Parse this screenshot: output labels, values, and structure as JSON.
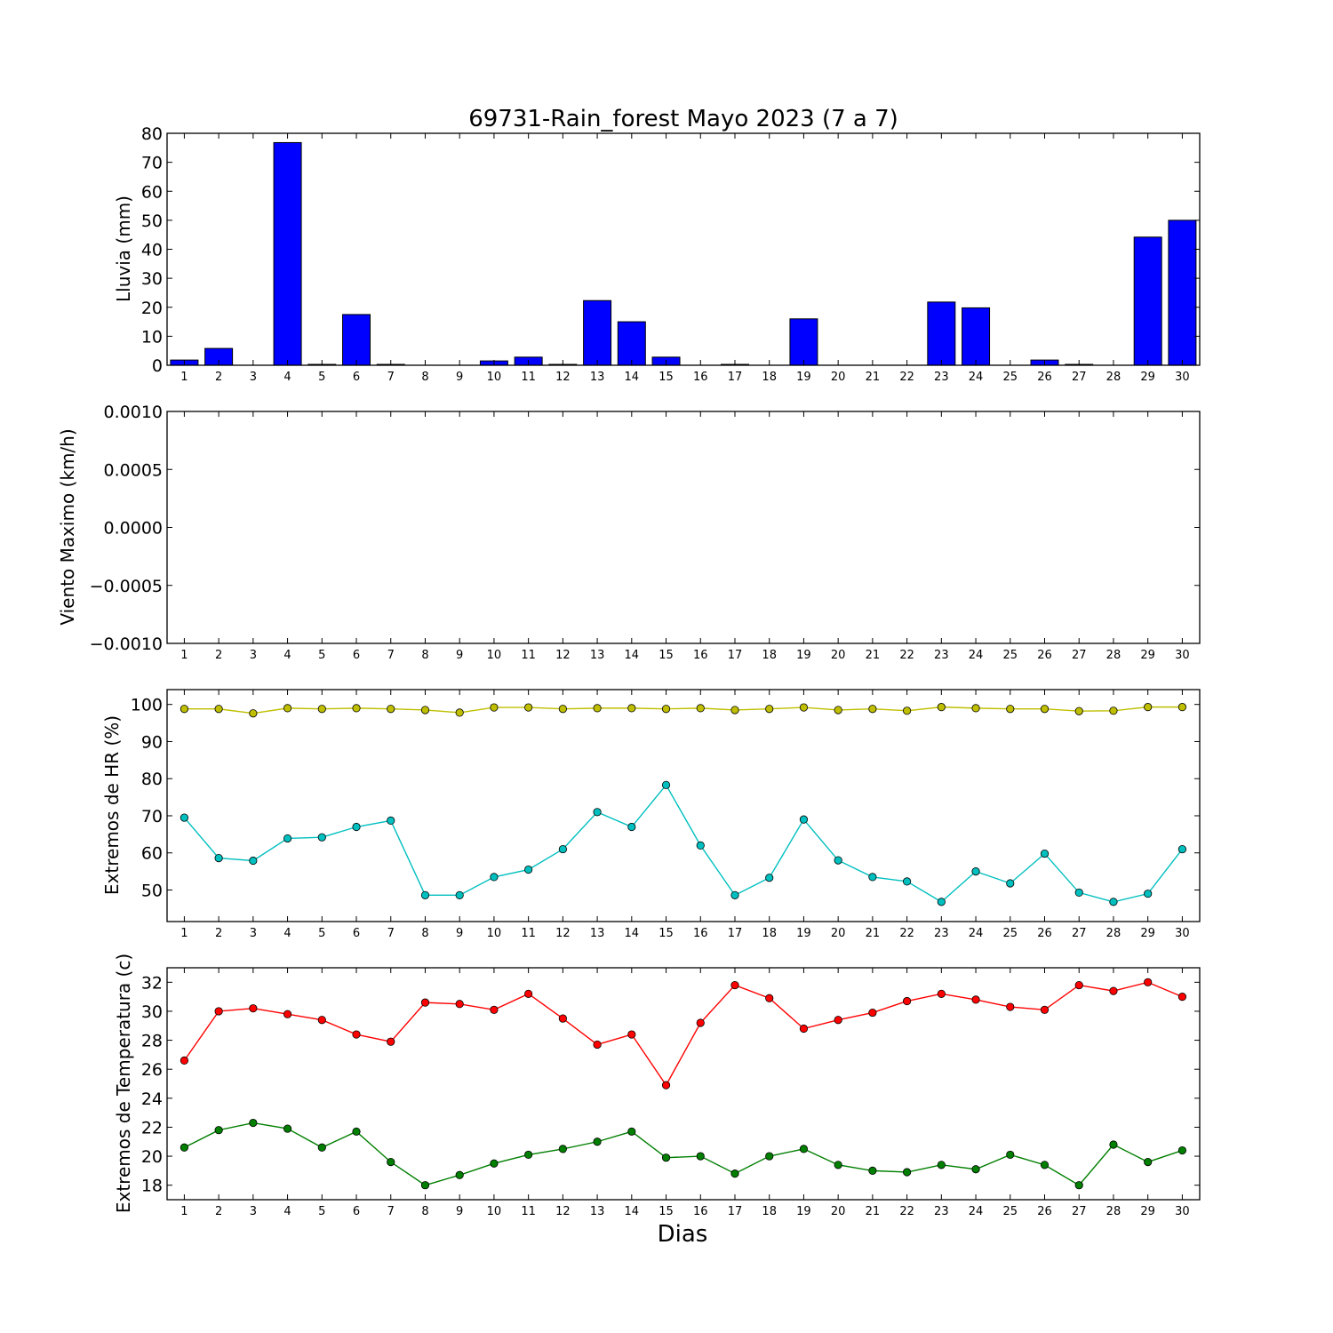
{
  "chart_data": [
    {
      "type": "bar",
      "title": "69731-Rain_forest Mayo 2023  (7 a 7)",
      "ylabel": "Lluvia (mm)",
      "xlabel": "",
      "categories": [
        "1",
        "2",
        "3",
        "4",
        "5",
        "6",
        "7",
        "8",
        "9",
        "10",
        "11",
        "12",
        "13",
        "14",
        "15",
        "16",
        "17",
        "18",
        "19",
        "20",
        "21",
        "22",
        "23",
        "24",
        "25",
        "26",
        "27",
        "28",
        "29",
        "30"
      ],
      "values": [
        1.8,
        5.8,
        0,
        76.8,
        0.3,
        17.5,
        0.3,
        0,
        0,
        1.5,
        2.8,
        0.3,
        22.3,
        15.0,
        2.8,
        0,
        0.3,
        0,
        16.0,
        0,
        0,
        0,
        21.8,
        19.8,
        0,
        1.8,
        0.3,
        0,
        44.2,
        50.0
      ],
      "ylim": [
        0,
        80
      ],
      "yticks": [
        "0",
        "10",
        "20",
        "30",
        "40",
        "50",
        "60",
        "70",
        "80"
      ],
      "color": "#0000ff"
    },
    {
      "type": "line",
      "title": "",
      "ylabel": "Viento Maximo (km/h)",
      "xlabel": "",
      "categories": [
        "1",
        "2",
        "3",
        "4",
        "5",
        "6",
        "7",
        "8",
        "9",
        "10",
        "11",
        "12",
        "13",
        "14",
        "15",
        "16",
        "17",
        "18",
        "19",
        "20",
        "21",
        "22",
        "23",
        "24",
        "25",
        "26",
        "27",
        "28",
        "29",
        "30"
      ],
      "series": [],
      "ylim": [
        -0.001,
        0.001
      ],
      "yticks": [
        "−0.0010",
        "−0.0005",
        "0.0000",
        "0.0005",
        "0.0010"
      ]
    },
    {
      "type": "line",
      "title": "",
      "ylabel": "Extremos de HR (%)",
      "xlabel": "",
      "categories": [
        "1",
        "2",
        "3",
        "4",
        "5",
        "6",
        "7",
        "8",
        "9",
        "10",
        "11",
        "12",
        "13",
        "14",
        "15",
        "16",
        "17",
        "18",
        "19",
        "20",
        "21",
        "22",
        "23",
        "24",
        "25",
        "26",
        "27",
        "28",
        "29",
        "30"
      ],
      "ylim": [
        41.5,
        104
      ],
      "yticks": [
        "50",
        "60",
        "70",
        "80",
        "90",
        "100"
      ],
      "series": [
        {
          "color": "#bfbf00",
          "values": [
            98.8,
            98.8,
            97.6,
            99.0,
            98.8,
            99.0,
            98.8,
            98.5,
            97.8,
            99.2,
            99.2,
            98.8,
            99.0,
            99.0,
            98.8,
            99.0,
            98.5,
            98.8,
            99.2,
            98.5,
            98.8,
            98.3,
            99.3,
            99.0,
            98.8,
            98.8,
            98.2,
            98.3,
            99.3,
            99.3
          ]
        },
        {
          "color": "#00bfbf",
          "values": [
            69.5,
            58.6,
            57.9,
            63.9,
            64.2,
            67.0,
            68.7,
            48.6,
            48.6,
            53.5,
            55.5,
            61.0,
            71.0,
            67.0,
            78.3,
            62.0,
            48.6,
            53.3,
            69.0,
            58.0,
            53.5,
            52.3,
            46.8,
            55.0,
            51.8,
            59.8,
            49.3,
            46.8,
            49.0,
            61.0
          ]
        }
      ]
    },
    {
      "type": "line",
      "title": "",
      "ylabel": "Extremos de Temperatura (c)",
      "xlabel": "Dias",
      "categories": [
        "1",
        "2",
        "3",
        "4",
        "5",
        "6",
        "7",
        "8",
        "9",
        "10",
        "11",
        "12",
        "13",
        "14",
        "15",
        "16",
        "17",
        "18",
        "19",
        "20",
        "21",
        "22",
        "23",
        "24",
        "25",
        "26",
        "27",
        "28",
        "29",
        "30"
      ],
      "ylim": [
        17,
        33
      ],
      "yticks": [
        "18",
        "20",
        "22",
        "24",
        "26",
        "28",
        "30",
        "32"
      ],
      "series": [
        {
          "color": "#ff0000",
          "values": [
            26.6,
            30.0,
            30.2,
            29.8,
            29.4,
            28.4,
            27.9,
            30.6,
            30.5,
            30.1,
            31.2,
            29.5,
            27.7,
            28.4,
            24.9,
            29.2,
            31.8,
            30.9,
            28.8,
            29.4,
            29.9,
            30.7,
            31.2,
            30.8,
            30.3,
            30.1,
            31.8,
            31.4,
            32.0,
            31.0
          ]
        },
        {
          "color": "#007f00",
          "values": [
            20.6,
            21.8,
            22.3,
            21.9,
            20.6,
            21.7,
            19.6,
            18.0,
            18.7,
            19.5,
            20.1,
            20.5,
            21.0,
            21.7,
            19.9,
            20.0,
            18.8,
            20.0,
            20.5,
            19.4,
            19.0,
            18.9,
            19.4,
            19.1,
            20.1,
            19.4,
            18.0,
            20.8,
            19.6,
            20.4
          ]
        }
      ]
    }
  ]
}
